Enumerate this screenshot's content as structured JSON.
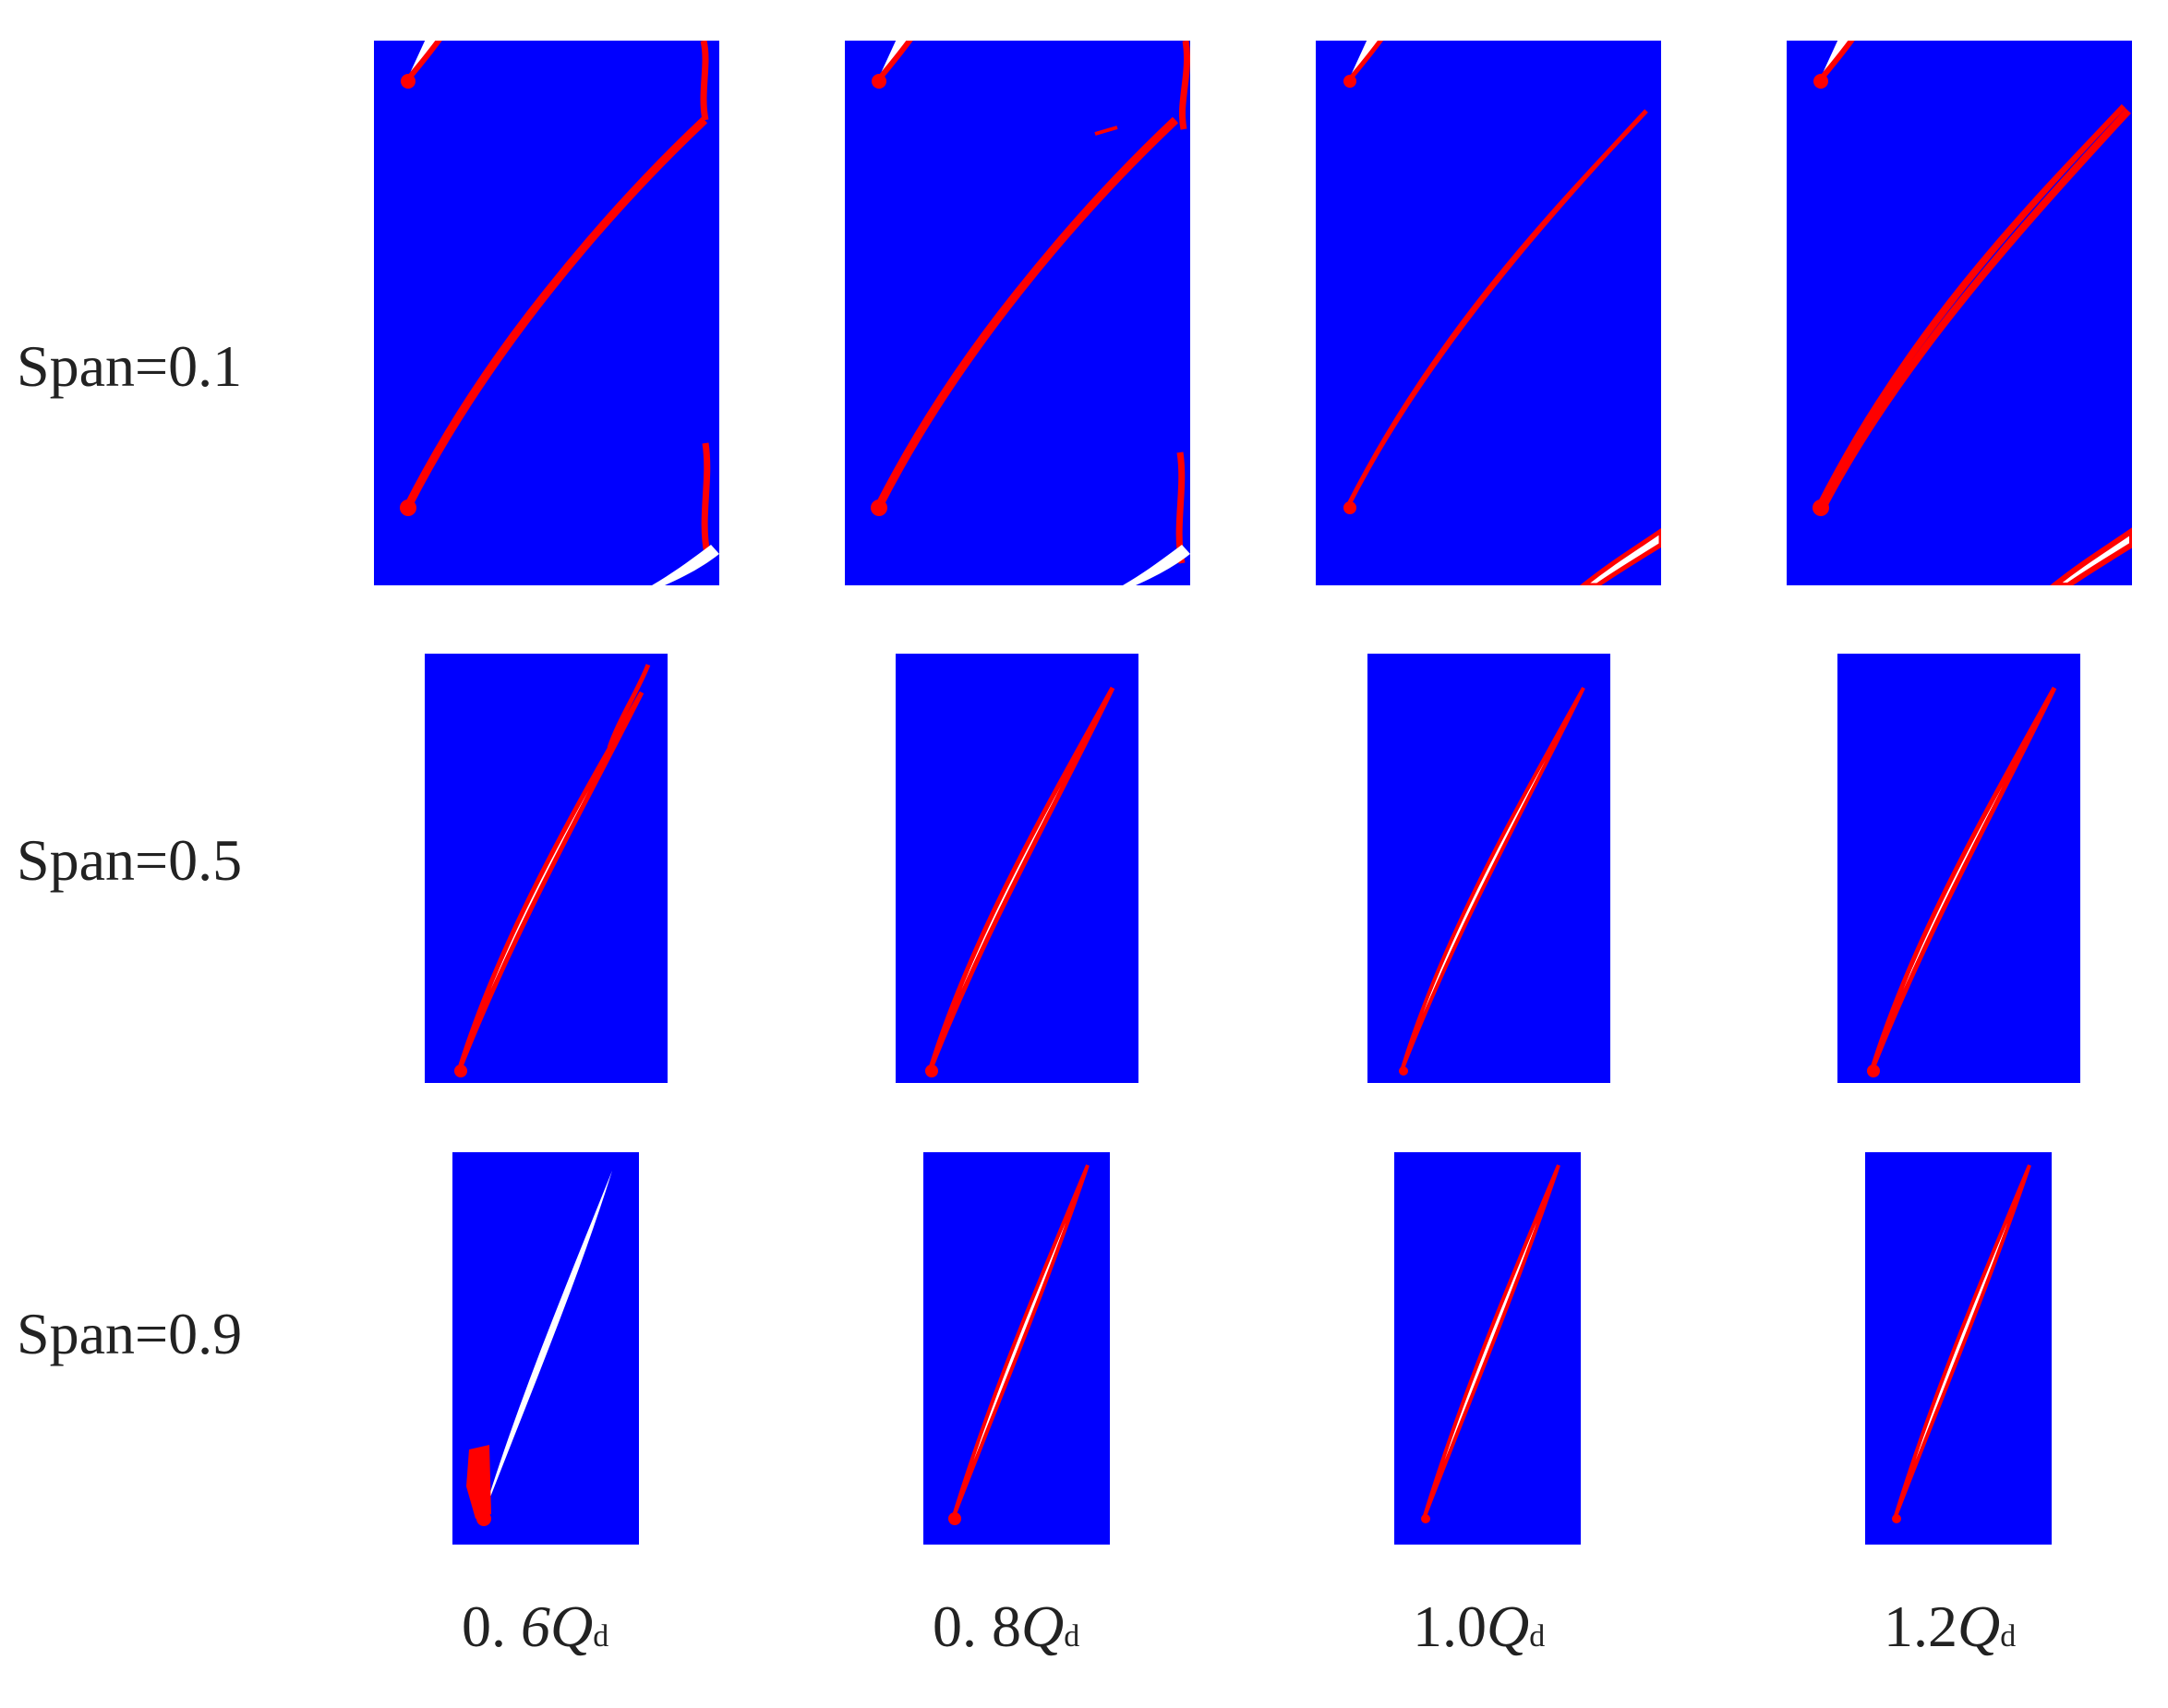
{
  "row_labels": [
    "Span=0.1",
    "Span=0.5",
    "Span=0.9"
  ],
  "column_labels": [
    {
      "prefix": "0. ",
      "prefix_italic": "6",
      "q": "Q",
      "sub": "d"
    },
    {
      "prefix": "0. 8",
      "prefix_italic": "",
      "q": "Q",
      "sub": "d"
    },
    {
      "prefix": "1.0",
      "prefix_italic": "",
      "q": "Q",
      "sub": "d"
    },
    {
      "prefix": "1.2",
      "prefix_italic": "",
      "q": "Q",
      "sub": "d"
    }
  ],
  "colors": {
    "background_field": "#0000ff",
    "blade": "#ffffff",
    "cavitation": "#ff0000",
    "text": "#222222"
  }
}
